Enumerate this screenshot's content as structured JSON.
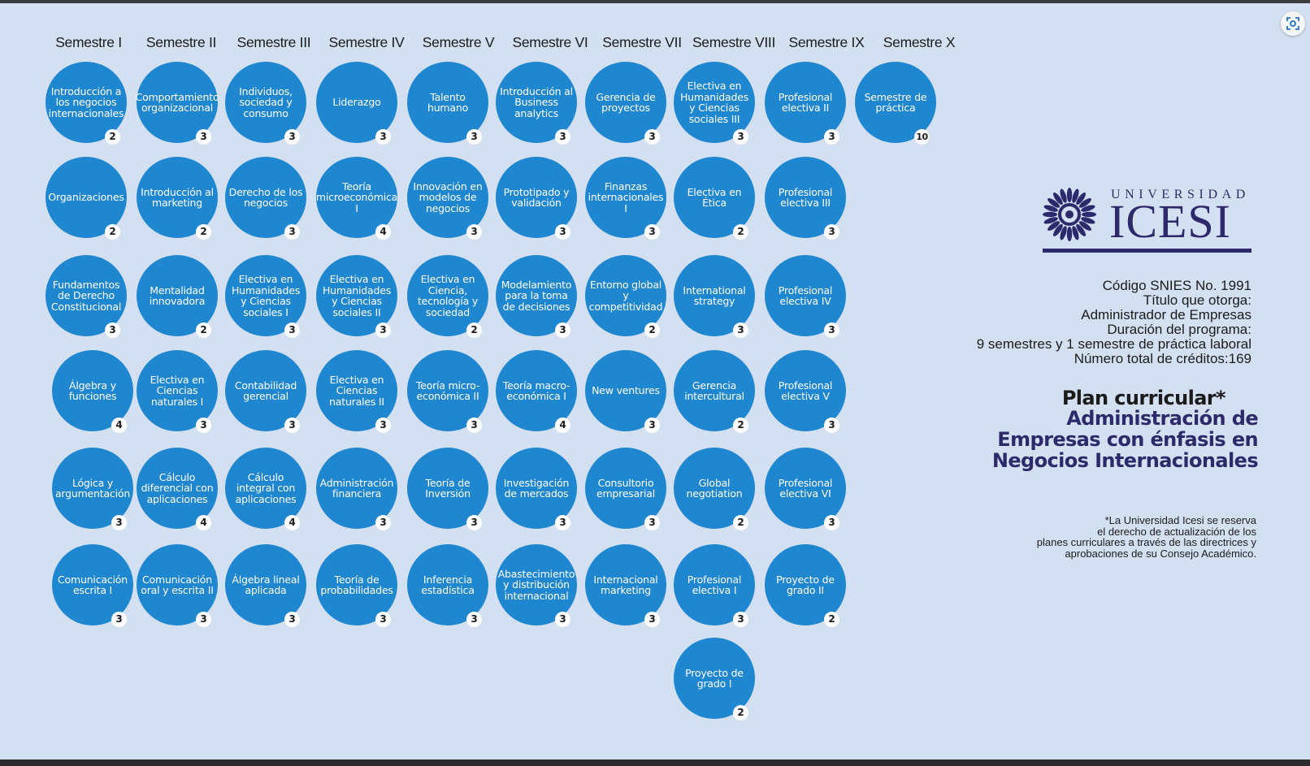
{
  "semesters": [
    {
      "label": "Semestre I",
      "courses": [
        {
          "name": "Introducción a los negocios internacionales",
          "credits": "2"
        },
        {
          "name": "Organizaciones",
          "credits": "2"
        },
        {
          "name": "Fundamentos de Derecho Constitucional",
          "credits": "3"
        },
        {
          "name": "Álgebra y funciones",
          "credits": "4"
        },
        {
          "name": "Lógica y argumentación",
          "credits": "3"
        },
        {
          "name": "Comunicación escrita I",
          "credits": "3"
        }
      ]
    },
    {
      "label": "Semestre II",
      "courses": [
        {
          "name": "Comportamiento organizacional",
          "credits": "3"
        },
        {
          "name": "Introducción al marketing",
          "credits": "2"
        },
        {
          "name": "Mentalidad innovadora",
          "credits": "2"
        },
        {
          "name": "Electiva en Ciencias naturales I",
          "credits": "3"
        },
        {
          "name": "Cálculo diferencial con aplicaciones",
          "credits": "4"
        },
        {
          "name": "Comunicación oral y escrita II",
          "credits": "3"
        }
      ]
    },
    {
      "label": "Semestre III",
      "courses": [
        {
          "name": "Individuos, sociedad y consumo",
          "credits": "3"
        },
        {
          "name": "Derecho de los negocios",
          "credits": "3"
        },
        {
          "name": "Electiva en Humanidades y Ciencias sociales I",
          "credits": "3"
        },
        {
          "name": "Contabilidad gerencial",
          "credits": "3"
        },
        {
          "name": "Cálculo integral con aplicaciones",
          "credits": "4"
        },
        {
          "name": "Álgebra lineal aplicada",
          "credits": "3"
        }
      ]
    },
    {
      "label": "Semestre IV",
      "courses": [
        {
          "name": "Liderazgo",
          "credits": "3"
        },
        {
          "name": "Teoría microeconómica I",
          "credits": "4"
        },
        {
          "name": "Electiva en Humanidades y Ciencias sociales II",
          "credits": "3"
        },
        {
          "name": "Electiva en Ciencias naturales II",
          "credits": "3"
        },
        {
          "name": "Administración financiera",
          "credits": "3"
        },
        {
          "name": "Teoría de probabilidades",
          "credits": "3"
        }
      ]
    },
    {
      "label": "Semestre V",
      "courses": [
        {
          "name": "Talento humano",
          "credits": "3"
        },
        {
          "name": "Innovación en modelos de negocios",
          "credits": "3"
        },
        {
          "name": "Electiva en Ciencia, tecnología y sociedad",
          "credits": "2"
        },
        {
          "name": "Teoría micro-económica II",
          "credits": "3"
        },
        {
          "name": "Teoría de Inversión",
          "credits": "3"
        },
        {
          "name": "Inferencia estadística",
          "credits": "3"
        }
      ]
    },
    {
      "label": "Semestre VI",
      "courses": [
        {
          "name": "Introducción al Business analytics",
          "credits": "3"
        },
        {
          "name": "Prototipado y validación",
          "credits": "3"
        },
        {
          "name": "Modelamiento para la toma de decisiones",
          "credits": "3"
        },
        {
          "name": "Teoría macro-económica I",
          "credits": "4"
        },
        {
          "name": "Investigación de mercados",
          "credits": "3"
        },
        {
          "name": "Abastecimiento y distribución internacional",
          "credits": "3"
        }
      ]
    },
    {
      "label": "Semestre VII",
      "courses": [
        {
          "name": "Gerencia de proyectos",
          "credits": "3"
        },
        {
          "name": "Finanzas internacionales I",
          "credits": "3"
        },
        {
          "name": "Entorno global y competitividad",
          "credits": "2"
        },
        {
          "name": "New ventures",
          "credits": "3"
        },
        {
          "name": "Consultorio empresarial",
          "credits": "3"
        },
        {
          "name": "Internacional marketing",
          "credits": "3"
        }
      ]
    },
    {
      "label": "Semestre VIII",
      "courses": [
        {
          "name": "Electiva en Humanidades y Ciencias sociales III",
          "credits": "3"
        },
        {
          "name": "Electiva en Ética",
          "credits": "2"
        },
        {
          "name": "International strategy",
          "credits": "3"
        },
        {
          "name": "Gerencia intercultural",
          "credits": "2"
        },
        {
          "name": "Global negotiation",
          "credits": "2"
        },
        {
          "name": "Profesional electiva I",
          "credits": "3"
        },
        {
          "name": "Proyecto de grado I",
          "credits": "2"
        }
      ]
    },
    {
      "label": "Semestre IX",
      "courses": [
        {
          "name": "Profesional electiva II",
          "credits": "3"
        },
        {
          "name": "Profesional electiva III",
          "credits": "3"
        },
        {
          "name": "Profesional electiva IV",
          "credits": "3"
        },
        {
          "name": "Profesional electiva V",
          "credits": "3"
        },
        {
          "name": "Profesional electiva VI",
          "credits": "3"
        },
        {
          "name": "Proyecto de grado II",
          "credits": "2"
        }
      ]
    },
    {
      "label": "Semestre X",
      "courses": [
        {
          "name": "Semestre de práctica",
          "credits": "10"
        }
      ]
    }
  ],
  "logo": {
    "top_text": "UNIVERSIDAD",
    "main_text": "ICESI"
  },
  "program_info": {
    "snies": "Código SNIES No. 1991",
    "degree_label": "Título que otorga:",
    "degree": "Administrador de Empresas",
    "duration_label": "Duración del programa:",
    "duration": "9 semestres y 1 semestre de práctica laboral",
    "total_credits": "Número total de créditos:169"
  },
  "plan_title": "Plan curricular*",
  "program_name": "Administración de Empresas con énfasis en Negocios Internacionales",
  "disclaimer": "*La Universidad Icesi se reserva\nel derecho de actualización de los\nplanes curriculares a través de las directrices y\naprobaciones de su Consejo Académico.",
  "colors": {
    "background": "#d3e0f2",
    "course_circle": "#1f86d0",
    "brand": "#2d2a6b"
  },
  "icons": {
    "scan": "scan-icon"
  }
}
